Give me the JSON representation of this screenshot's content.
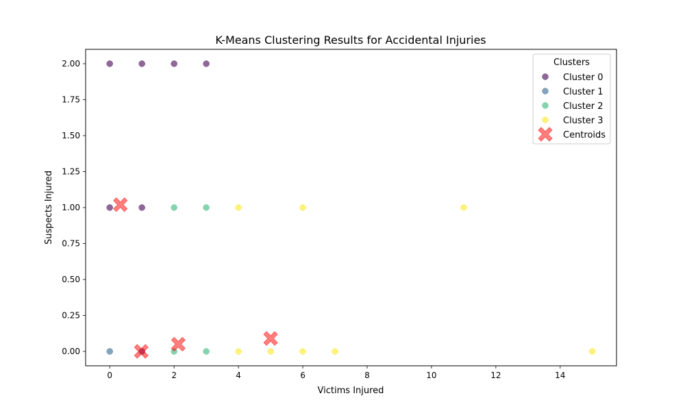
{
  "chart_data": {
    "type": "scatter",
    "title": "K-Means Clustering Results for Accidental Injuries",
    "xlabel": "Victims Injured",
    "ylabel": "Suspects Injured",
    "xlim": [
      -0.75,
      15.75
    ],
    "ylim": [
      -0.1,
      2.1
    ],
    "xticks": [
      0,
      2,
      4,
      6,
      8,
      10,
      12,
      14
    ],
    "yticks": [
      0.0,
      0.25,
      0.5,
      0.75,
      1.0,
      1.25,
      1.5,
      1.75,
      2.0
    ],
    "xtick_labels": [
      "0",
      "2",
      "4",
      "6",
      "8",
      "10",
      "12",
      "14"
    ],
    "ytick_labels": [
      "0.00",
      "0.25",
      "0.50",
      "0.75",
      "1.00",
      "1.25",
      "1.50",
      "1.75",
      "2.00"
    ],
    "grid": false,
    "legend": {
      "title": "Clusters",
      "placement": "upper-right",
      "labels": [
        "Cluster 0",
        "Cluster 1",
        "Cluster 2",
        "Cluster 3",
        "Centroids"
      ]
    },
    "series": [
      {
        "name": "Cluster 0",
        "color": "#440154",
        "alpha": 0.6,
        "points": [
          [
            0,
            2
          ],
          [
            1,
            2
          ],
          [
            2,
            2
          ],
          [
            3,
            2
          ],
          [
            0,
            1
          ],
          [
            1,
            1
          ],
          [
            1,
            0
          ]
        ]
      },
      {
        "name": "Cluster 1",
        "color": "#31688e",
        "alpha": 0.6,
        "points": [
          [
            0,
            0
          ]
        ]
      },
      {
        "name": "Cluster 2",
        "color": "#35b779",
        "alpha": 0.6,
        "points": [
          [
            2,
            1
          ],
          [
            3,
            1
          ],
          [
            2,
            0
          ],
          [
            3,
            0
          ]
        ]
      },
      {
        "name": "Cluster 3",
        "color": "#fde725",
        "alpha": 0.6,
        "points": [
          [
            4,
            1
          ],
          [
            6,
            1
          ],
          [
            11,
            1
          ],
          [
            4,
            0
          ],
          [
            5,
            0
          ],
          [
            6,
            0
          ],
          [
            7,
            0
          ],
          [
            15,
            0
          ]
        ]
      }
    ],
    "centroids": {
      "name": "Centroids",
      "color": "#ff0000",
      "alpha": 0.5,
      "marker": "X",
      "points": [
        [
          0.33,
          1.02
        ],
        [
          0.98,
          0.0
        ],
        [
          2.13,
          0.05
        ],
        [
          5.0,
          0.09
        ]
      ]
    }
  }
}
